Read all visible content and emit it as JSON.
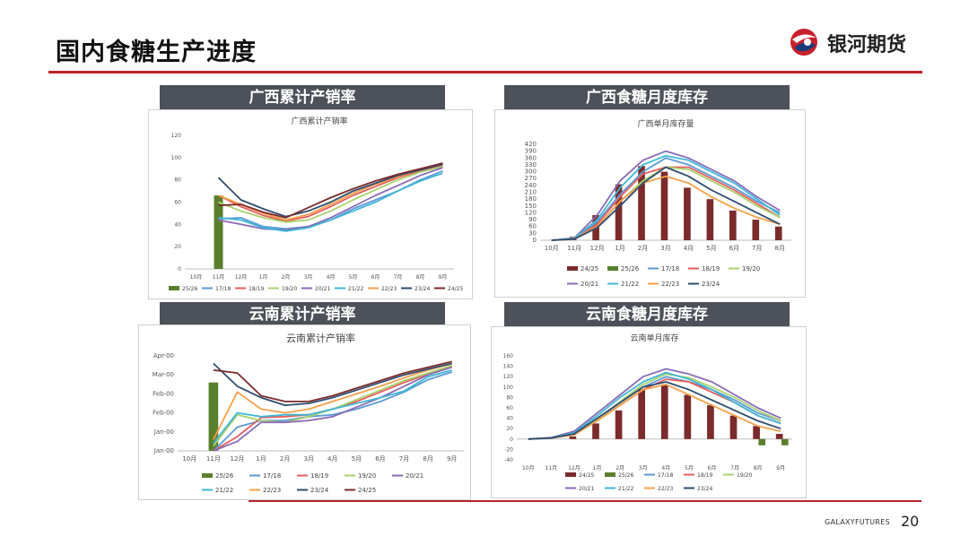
{
  "slide": {
    "title": "国内食糖生产进度",
    "brand": "银河期货",
    "footer_brand": "GALAXYFUTURES",
    "page_number": "20",
    "colors": {
      "accent": "#b8242b",
      "band": "#4d5159"
    }
  },
  "sections": {
    "gx_rate": "广西累计产销率",
    "gx_stock": "广西食糖月度库存",
    "yn_rate": "云南累计产销率",
    "yn_stock": "云南食糖月度库存"
  },
  "chart_data": [
    {
      "id": "gx_rate",
      "type": "line",
      "title": "广西累计产销率",
      "categories": [
        "10月",
        "11月",
        "12月",
        "1月",
        "2月",
        "3月",
        "4月",
        "5月",
        "6月",
        "7月",
        "8月",
        "9月"
      ],
      "y_ticks": [
        "0",
        "20",
        "40",
        "60",
        "80",
        "100",
        "120"
      ],
      "ylim": [
        0,
        120
      ],
      "bar": {
        "name": "25/26",
        "color": "#5a7f2c",
        "values": [
          null,
          66,
          null,
          null,
          null,
          null,
          null,
          null,
          null,
          null,
          null,
          null
        ]
      },
      "series": [
        {
          "name": "17/18",
          "color": "#5b9bd5",
          "values": [
            null,
            45,
            46,
            38,
            36,
            38,
            44,
            54,
            62,
            70,
            80,
            88
          ]
        },
        {
          "name": "18/19",
          "color": "#e85c5c",
          "values": [
            null,
            66,
            56,
            48,
            43,
            47,
            56,
            66,
            74,
            82,
            88,
            93
          ]
        },
        {
          "name": "19/20",
          "color": "#a9d16c",
          "values": [
            null,
            60,
            52,
            46,
            42,
            44,
            52,
            62,
            71,
            80,
            87,
            92
          ]
        },
        {
          "name": "20/21",
          "color": "#8a6bb8",
          "values": [
            null,
            44,
            40,
            36,
            35,
            38,
            46,
            56,
            66,
            75,
            84,
            91
          ]
        },
        {
          "name": "21/22",
          "color": "#3fb7d6",
          "values": [
            null,
            46,
            44,
            37,
            34,
            37,
            44,
            52,
            60,
            70,
            79,
            86
          ]
        },
        {
          "name": "22/23",
          "color": "#f5a04a",
          "values": [
            null,
            66,
            58,
            50,
            44,
            49,
            58,
            68,
            76,
            83,
            89,
            94
          ]
        },
        {
          "name": "23/24",
          "color": "#2f4d70",
          "values": [
            null,
            82,
            62,
            54,
            47,
            52,
            60,
            70,
            77,
            84,
            89,
            94
          ]
        },
        {
          "name": "24/25",
          "color": "#7b2b2b",
          "values": [
            null,
            57,
            58,
            51,
            46,
            55,
            64,
            72,
            79,
            85,
            90,
            95
          ]
        }
      ]
    },
    {
      "id": "gx_stock",
      "type": "bar+line",
      "title": "广西单月库存量",
      "categories": [
        "10月",
        "11月",
        "12月",
        "1月",
        "2月",
        "3月",
        "4月",
        "5月",
        "6月",
        "7月",
        "8月"
      ],
      "y_ticks": [
        "0",
        "30",
        "60",
        "90",
        "120",
        "150",
        "180",
        "210",
        "240",
        "270",
        "300",
        "330",
        "360",
        "390",
        "420"
      ],
      "ylim": [
        0,
        420
      ],
      "bars": [
        {
          "name": "24/25",
          "color": "#7b2b2b",
          "values": [
            0,
            15,
            110,
            245,
            325,
            300,
            230,
            180,
            130,
            90,
            60
          ]
        },
        {
          "name": "25/26",
          "color": "#5a7f2c",
          "values": [
            0,
            0,
            0,
            0,
            0,
            0,
            0,
            0,
            0,
            0,
            0
          ]
        }
      ],
      "series": [
        {
          "name": "17/18",
          "color": "#5b9bd5",
          "values": [
            0,
            8,
            80,
            200,
            300,
            360,
            330,
            280,
            230,
            170,
            120
          ]
        },
        {
          "name": "18/19",
          "color": "#e85c5c",
          "values": [
            0,
            5,
            70,
            190,
            290,
            320,
            320,
            270,
            220,
            160,
            100
          ]
        },
        {
          "name": "19/20",
          "color": "#a9d16c",
          "values": [
            0,
            5,
            60,
            170,
            260,
            320,
            310,
            260,
            210,
            150,
            100
          ]
        },
        {
          "name": "20/21",
          "color": "#8a6bb8",
          "values": [
            0,
            10,
            110,
            260,
            350,
            390,
            360,
            310,
            260,
            190,
            130
          ]
        },
        {
          "name": "21/22",
          "color": "#3fb7d6",
          "values": [
            0,
            8,
            90,
            230,
            330,
            370,
            350,
            300,
            250,
            180,
            110
          ]
        },
        {
          "name": "22/23",
          "color": "#f5a04a",
          "values": [
            0,
            5,
            60,
            170,
            250,
            280,
            250,
            190,
            140,
            100,
            70
          ]
        },
        {
          "name": "23/24",
          "color": "#2f4d70",
          "values": [
            0,
            5,
            55,
            150,
            250,
            320,
            280,
            220,
            170,
            120,
            70
          ]
        }
      ]
    },
    {
      "id": "yn_rate",
      "type": "line",
      "title": "云南累计产销率",
      "categories": [
        "10月",
        "11月",
        "12月",
        "1月",
        "2月",
        "3月",
        "4月",
        "5月",
        "6月",
        "7月",
        "8月",
        "9月"
      ],
      "y_ticks": [
        "Jan-00",
        "Jan-00",
        "Feb-00",
        "Feb-00",
        "Mar-00",
        "Apr-00"
      ],
      "ylim": [
        0,
        100
      ],
      "bar": {
        "name": "25/26",
        "color": "#5a7f2c",
        "values": [
          null,
          72,
          null,
          null,
          null,
          null,
          null,
          null,
          null,
          null,
          null,
          null
        ]
      },
      "series": [
        {
          "name": "17/18",
          "color": "#5b9bd5",
          "values": [
            null,
            0,
            25,
            32,
            32,
            36,
            38,
            44,
            52,
            62,
            75,
            83
          ]
        },
        {
          "name": "18/19",
          "color": "#e85c5c",
          "values": [
            null,
            0,
            15,
            35,
            36,
            38,
            44,
            52,
            62,
            72,
            81,
            89
          ]
        },
        {
          "name": "19/20",
          "color": "#a9d16c",
          "values": [
            null,
            5,
            38,
            32,
            30,
            36,
            44,
            54,
            64,
            74,
            82,
            90
          ]
        },
        {
          "name": "20/21",
          "color": "#8a6bb8",
          "values": [
            null,
            0,
            10,
            30,
            30,
            32,
            36,
            46,
            56,
            68,
            80,
            88
          ]
        },
        {
          "name": "21/22",
          "color": "#3fb7d6",
          "values": [
            null,
            8,
            40,
            36,
            38,
            38,
            44,
            50,
            56,
            63,
            78,
            85
          ]
        },
        {
          "name": "22/23",
          "color": "#f5a04a",
          "values": [
            null,
            12,
            62,
            44,
            40,
            44,
            52,
            60,
            68,
            77,
            85,
            92
          ]
        },
        {
          "name": "23/24",
          "color": "#2f4d70",
          "values": [
            null,
            92,
            68,
            56,
            48,
            50,
            56,
            64,
            72,
            80,
            86,
            92
          ]
        },
        {
          "name": "24/25",
          "color": "#7b2b2b",
          "values": [
            null,
            85,
            82,
            58,
            52,
            52,
            58,
            66,
            74,
            82,
            88,
            94
          ]
        }
      ]
    },
    {
      "id": "yn_stock",
      "type": "bar+line",
      "title": "云南单月库存",
      "categories": [
        "10月",
        "11月",
        "12月",
        "1月",
        "2月",
        "3月",
        "4月",
        "5月",
        "6月",
        "7月",
        "8月",
        "9月"
      ],
      "y_ticks": [
        "-40",
        "-20",
        "0",
        "20",
        "40",
        "60",
        "80",
        "100",
        "120",
        "140",
        "160"
      ],
      "ylim": [
        -40,
        160
      ],
      "bars": [
        {
          "name": "24/25",
          "color": "#7b2b2b",
          "values": [
            0,
            0,
            5,
            30,
            55,
            95,
            105,
            85,
            65,
            45,
            25,
            10
          ]
        },
        {
          "name": "25/26",
          "color": "#5a7f2c",
          "values": [
            0,
            0,
            0,
            0,
            0,
            0,
            0,
            0,
            0,
            0,
            -12,
            -12
          ]
        }
      ],
      "series": [
        {
          "name": "17/18",
          "color": "#5b9bd5",
          "values": [
            0,
            2,
            12,
            38,
            70,
            100,
            120,
            110,
            95,
            75,
            50,
            35
          ]
        },
        {
          "name": "18/19",
          "color": "#e85c5c",
          "values": [
            0,
            2,
            10,
            35,
            65,
            95,
            115,
            110,
            90,
            70,
            45,
            30
          ]
        },
        {
          "name": "19/20",
          "color": "#a9d16c",
          "values": [
            0,
            2,
            10,
            38,
            72,
            105,
            125,
            118,
            100,
            80,
            55,
            35
          ]
        },
        {
          "name": "20/21",
          "color": "#8a6bb8",
          "values": [
            0,
            3,
            15,
            50,
            85,
            120,
            135,
            125,
            110,
            85,
            60,
            40
          ]
        },
        {
          "name": "21/22",
          "color": "#3fb7d6",
          "values": [
            0,
            2,
            12,
            45,
            80,
            110,
            128,
            115,
            95,
            70,
            45,
            30
          ]
        },
        {
          "name": "22/23",
          "color": "#f5a04a",
          "values": [
            0,
            2,
            8,
            35,
            65,
            95,
            105,
            85,
            65,
            45,
            25,
            15
          ]
        },
        {
          "name": "23/24",
          "color": "#2f4d70",
          "values": [
            0,
            2,
            10,
            40,
            70,
            100,
            110,
            95,
            75,
            55,
            35,
            20
          ]
        }
      ]
    }
  ]
}
